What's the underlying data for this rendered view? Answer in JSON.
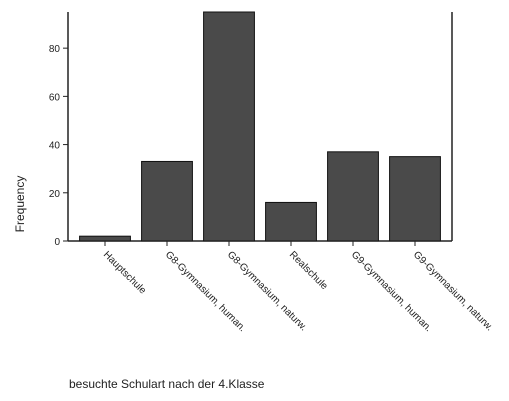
{
  "chart_data": {
    "type": "bar",
    "xlabel": "besuchte Schulart nach der 4.Klasse",
    "ylabel": "Frequency",
    "ylim": [
      0,
      95
    ],
    "yticks": [
      0,
      20,
      40,
      60,
      80
    ],
    "categories": [
      "Hauptschule",
      "G8-Gymnasium, human.",
      "G8-Gymnasium, naturw.",
      "Realschule",
      "G9-Gymnasium, human.",
      "G9-Gymnasium, naturw."
    ],
    "values": [
      2,
      33,
      95,
      16,
      37,
      35
    ],
    "bar_color": "#4a4a4a",
    "grid": false
  }
}
